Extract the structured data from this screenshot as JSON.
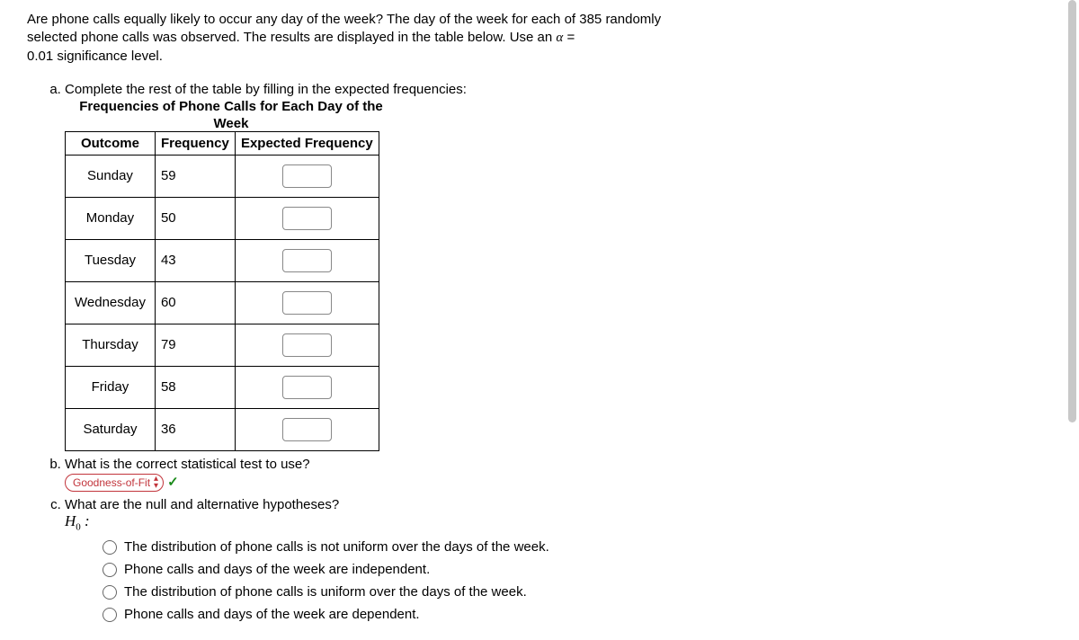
{
  "intro": {
    "line1": "Are phone calls equally likely to occur any day of the week? The day of the week for each of 385 randomly",
    "line2": "selected phone calls was observed. The results are displayed in the table below.  Use an ",
    "alpha": "α",
    "eq": " =",
    "line3": "0.01 significance level."
  },
  "partA": {
    "prompt": "Complete the rest of the table by filling in the expected frequencies:",
    "title1": "Frequencies of Phone Calls for Each Day of the",
    "title2": "Week",
    "headers": {
      "outcome": "Outcome",
      "freq": "Frequency",
      "exp": "Expected Frequency"
    },
    "rows": [
      {
        "day": "Sunday",
        "count": "59"
      },
      {
        "day": "Monday",
        "count": "50"
      },
      {
        "day": "Tuesday",
        "count": "43"
      },
      {
        "day": "Wednesday",
        "count": "60"
      },
      {
        "day": "Thursday",
        "count": "79"
      },
      {
        "day": "Friday",
        "count": "58"
      },
      {
        "day": "Saturday",
        "count": "36"
      }
    ]
  },
  "partB": {
    "prompt": "What is the correct statistical test to use?",
    "selected": "Goodness-of-Fit"
  },
  "partC": {
    "prompt": "What are the null and alternative hypotheses?",
    "h0label_h": "H",
    "h0label_sub": "0",
    "h0label_colon": " :",
    "options": [
      "The distribution of phone calls is not uniform over the days of the week.",
      "Phone calls and days of the week are independent.",
      "The distribution of phone calls is uniform over the days of the week.",
      "Phone calls and days of the week are dependent."
    ]
  },
  "colors": {
    "select_border": "#c2343b",
    "check": "#1a8a1a",
    "table_border": "#000000",
    "text": "#000000",
    "bg": "#ffffff"
  }
}
